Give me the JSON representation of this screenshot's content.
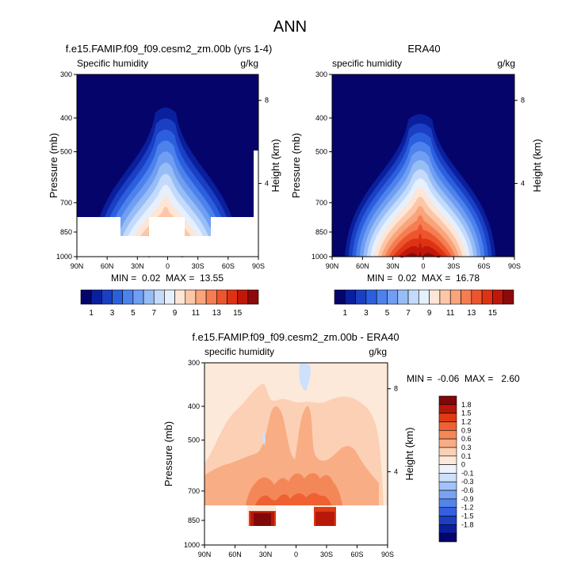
{
  "figure": {
    "title": "ANN"
  },
  "colors": {
    "absolute_scale": [
      "#05046b",
      "#0a1f9e",
      "#1a3fc2",
      "#2c5fde",
      "#4d82ec",
      "#6f9ef2",
      "#97bdf7",
      "#c3dafb",
      "#e6f0fd",
      "#fde6d6",
      "#fcc7a8",
      "#f9a47b",
      "#f57d51",
      "#ec552e",
      "#dd3314",
      "#c0170a",
      "#8c0a0a"
    ],
    "difference_scale": [
      "#05046b",
      "#0a1f9e",
      "#1a3fc2",
      "#3460df",
      "#5483ec",
      "#7aa2f3",
      "#a3c2f8",
      "#cde0fc",
      "#eef4fe",
      "#fde9d9",
      "#fcd0b5",
      "#f8ad85",
      "#f48758",
      "#ef6133",
      "#df3a14",
      "#b71909",
      "#800808"
    ],
    "masked": "#ffffff",
    "axis": "#000000"
  },
  "chart_data": [
    {
      "type": "contour",
      "id": "model",
      "title": "f.e15.FAMIP.f09_f09.cesm2_zm.00b (yrs 1-4)",
      "left_label": "Specific humidity",
      "right_label": "g/kg",
      "ylabel": "Pressure (mb)",
      "right_axis_label": "Height (km)",
      "x_ticks": [
        "90N",
        "60N",
        "30N",
        "0",
        "30S",
        "60S",
        "90S"
      ],
      "y_ticks": [
        300,
        400,
        500,
        700,
        850,
        1000
      ],
      "right_ticks": [
        8,
        4
      ],
      "ylim": [
        300,
        1000
      ],
      "stats": "MIN =  0.02  MAX =  13.55",
      "peak_value": 13.55,
      "peak_pressure": 830,
      "peak_width_deg": 26,
      "top_pressure": 345,
      "moist_top_width_deg": 32,
      "masked_below_850": true
    },
    {
      "type": "contour",
      "id": "obs",
      "title": "ERA40",
      "left_label": "specific humidity",
      "right_label": "g/kg",
      "ylabel": "Pressure (mb)",
      "right_axis_label": "Height (km)",
      "x_ticks": [
        "90N",
        "60N",
        "30N",
        "0",
        "30S",
        "60S",
        "90S"
      ],
      "y_ticks": [
        300,
        400,
        500,
        700,
        850,
        1000
      ],
      "right_ticks": [
        8,
        4
      ],
      "ylim": [
        300,
        1000
      ],
      "stats": "MIN =  0.02  MAX =  16.78",
      "peak_value": 16.78,
      "peak_pressure": 1000,
      "peak_width_deg": 30,
      "top_pressure": 365,
      "moist_top_width_deg": 36,
      "masked_below_850": false
    },
    {
      "type": "contour",
      "id": "diff",
      "title": "f.e15.FAMIP.f09_f09.cesm2_zm.00b - ERA40",
      "left_label": "specific humidity",
      "right_label": "g/kg",
      "ylabel": "Pressure (mb)",
      "right_axis_label": "Height (km)",
      "x_ticks": [
        "90N",
        "60N",
        "30N",
        "0",
        "30S",
        "60S",
        "90S"
      ],
      "y_ticks": [
        300,
        400,
        500,
        700,
        850,
        1000
      ],
      "right_ticks": [
        8,
        4
      ],
      "ylim": [
        300,
        1000
      ],
      "stats": "MIN =  -0.06  MAX =   2.60",
      "masked_below_850": true
    }
  ],
  "colorbars": {
    "absolute": {
      "labels": [
        "1",
        "3",
        "5",
        "7",
        "9",
        "11",
        "13",
        "15"
      ]
    },
    "difference": {
      "labels": [
        "1.8",
        "1.5",
        "1.2",
        "0.9",
        "0.6",
        "0.3",
        "0.1",
        "0",
        "-0.1",
        "-0.3",
        "-0.6",
        "-0.9",
        "-1.2",
        "-1.5",
        "-1.8"
      ]
    }
  }
}
